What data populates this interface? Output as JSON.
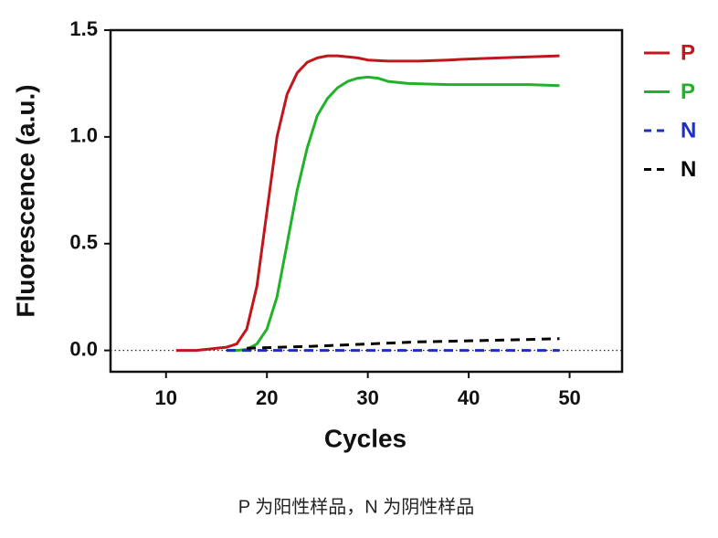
{
  "chart_data": {
    "type": "line",
    "x_label": "Cycles",
    "y_label": "Fluorescence (a.u.)",
    "caption": "P 为阳性样品，N 为阴性样品",
    "xlim": [
      4.5,
      55.2
    ],
    "ylim": [
      -0.1,
      1.5
    ],
    "xticks": [
      10,
      20,
      30,
      40,
      50
    ],
    "yticks": [
      {
        "value": 0,
        "label": "0.0"
      },
      0.5,
      {
        "value": 1,
        "label": "1.0"
      },
      1.5
    ],
    "zero_line": true,
    "legend": "outside-right",
    "series": [
      {
        "name": "P",
        "color": "#c0171c",
        "dashed": false,
        "x": [
          11,
          12,
          13,
          14,
          15,
          16,
          17,
          18,
          19,
          20,
          21,
          22,
          23,
          24,
          25,
          26,
          27,
          28,
          29,
          30,
          32,
          35,
          38,
          40,
          43,
          46,
          49
        ],
        "values": [
          0,
          0,
          0,
          0.005,
          0.01,
          0.015,
          0.03,
          0.1,
          0.3,
          0.65,
          1.0,
          1.2,
          1.3,
          1.35,
          1.37,
          1.38,
          1.38,
          1.375,
          1.37,
          1.36,
          1.355,
          1.355,
          1.36,
          1.365,
          1.37,
          1.375,
          1.38
        ]
      },
      {
        "name": "P",
        "color": "#22b22a",
        "dashed": false,
        "x": [
          16,
          17,
          18,
          19,
          20,
          21,
          22,
          23,
          24,
          25,
          26,
          27,
          28,
          29,
          30,
          31,
          32,
          34,
          38,
          42,
          46,
          49
        ],
        "values": [
          0,
          0,
          0.005,
          0.03,
          0.1,
          0.25,
          0.5,
          0.75,
          0.95,
          1.1,
          1.18,
          1.23,
          1.26,
          1.275,
          1.28,
          1.275,
          1.26,
          1.25,
          1.245,
          1.245,
          1.245,
          1.24
        ]
      },
      {
        "name": "N",
        "color": "#1f2fbf",
        "dashed": true,
        "x": [
          16,
          25,
          35,
          49
        ],
        "values": [
          0,
          0,
          0,
          0
        ]
      },
      {
        "name": "N",
        "color": "#000000",
        "dashed": true,
        "x": [
          18,
          25,
          30,
          35,
          40,
          45,
          49
        ],
        "values": [
          0.01,
          0.02,
          0.03,
          0.04,
          0.045,
          0.05,
          0.055
        ]
      }
    ]
  }
}
